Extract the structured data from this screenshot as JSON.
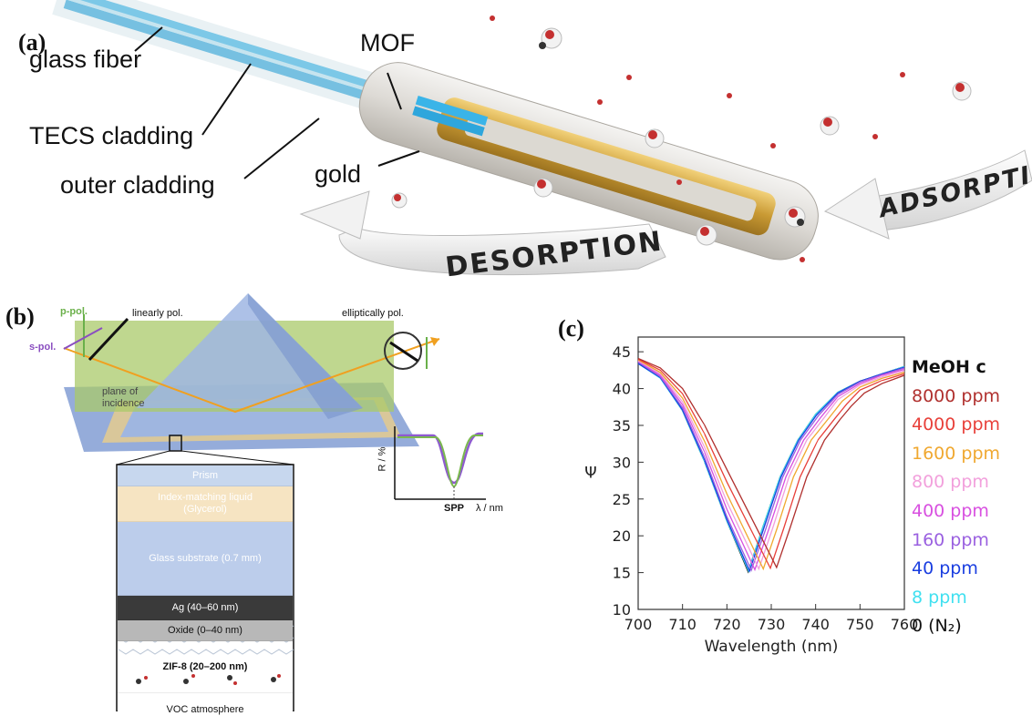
{
  "panel_a": {
    "label": "(a)",
    "glass_fiber": "glass fiber",
    "tecs_cladding": "TECS cladding",
    "outer_cladding": "outer cladding",
    "mof": "MOF",
    "gold": "gold",
    "desorption": "DESORPTION",
    "adsorption": "ADSORPTION"
  },
  "panel_b": {
    "label": "(b)",
    "p_pol": "p-pol.",
    "s_pol": "s-pol.",
    "linearly_pol": "linearly pol.",
    "elliptically_pol": "elliptically pol.",
    "plane_of": "plane of",
    "incidence": "incidence",
    "r_axis": "R / %",
    "spp": "SPP",
    "lambda_axis": "λ / nm",
    "layers": [
      {
        "text": "Prism",
        "color": "#c7d7ee",
        "text_color": "#ffffff"
      },
      {
        "text": "Index-matching liquid\n(Glycerol)",
        "color": "#f6e4c2",
        "text_color": "#ffffff"
      },
      {
        "text": "Glass substrate (0.7 mm)",
        "color": "#bccdeb",
        "text_color": "#ffffff"
      },
      {
        "text": "Ag (40–60 nm)",
        "color": "#3a3a3a",
        "text_color": "#ffffff"
      },
      {
        "text": "Oxide (0–40 nm)",
        "color": "#b8b8b8",
        "text_color": "#111111"
      },
      {
        "text": "ZIF-8 (20–200 nm)",
        "color": "#e4e8ee",
        "text_color": "#111111"
      },
      {
        "text": "VOC atmosphere",
        "color": "#ffffff",
        "text_color": "#111111"
      }
    ]
  },
  "panel_c": {
    "label": "(c)",
    "legend_title": "MeOH c",
    "legend": [
      {
        "text": "8000 ppm",
        "color": "#b0302e"
      },
      {
        "text": "4000 ppm",
        "color": "#e8403a"
      },
      {
        "text": "1600 ppm",
        "color": "#f0a830"
      },
      {
        "text": "800 ppm",
        "color": "#f2a0dc"
      },
      {
        "text": "400 ppm",
        "color": "#d850e0"
      },
      {
        "text": "160 ppm",
        "color": "#9a60e0"
      },
      {
        "text": "40 ppm",
        "color": "#1a3ee0"
      },
      {
        "text": "8 ppm",
        "color": "#40e0f0"
      },
      {
        "text": "0 (N₂)",
        "color": "#111111"
      }
    ]
  },
  "chart_data": {
    "type": "line",
    "title": "",
    "xlabel": "Wavelength (nm)",
    "ylabel": "Ψ",
    "xlim": [
      700,
      760
    ],
    "ylim": [
      10,
      47
    ],
    "xticks": [
      700,
      710,
      720,
      730,
      740,
      750,
      760
    ],
    "yticks": [
      10,
      15,
      20,
      25,
      30,
      35,
      40,
      45
    ],
    "grid": false,
    "legend_position": "right",
    "series": [
      {
        "name": "0 (N₂)",
        "color": "#111111",
        "min_x": 724.8,
        "points": [
          [
            700,
            43.5
          ],
          [
            705,
            41.5
          ],
          [
            710,
            37
          ],
          [
            715,
            30
          ],
          [
            720,
            22
          ],
          [
            724.8,
            15.1
          ],
          [
            728,
            21
          ],
          [
            732,
            28
          ],
          [
            736,
            33
          ],
          [
            740,
            36.5
          ],
          [
            745,
            39.5
          ],
          [
            750,
            41
          ],
          [
            755,
            42
          ],
          [
            760,
            43
          ]
        ]
      },
      {
        "name": "8 ppm",
        "color": "#40e0f0",
        "min_x": 724.9,
        "points": [
          [
            700,
            43.4
          ],
          [
            705,
            41.4
          ],
          [
            710,
            37
          ],
          [
            715,
            30
          ],
          [
            720,
            22
          ],
          [
            724.9,
            15.2
          ],
          [
            728,
            21
          ],
          [
            732,
            28
          ],
          [
            736,
            33
          ],
          [
            740,
            36.5
          ],
          [
            745,
            39.5
          ],
          [
            750,
            41
          ],
          [
            755,
            42
          ],
          [
            760,
            43
          ]
        ]
      },
      {
        "name": "40 ppm",
        "color": "#1a3ee0",
        "min_x": 725.1,
        "points": [
          [
            700,
            43.4
          ],
          [
            705,
            41.5
          ],
          [
            710,
            37.1
          ],
          [
            715,
            30.2
          ],
          [
            720,
            22.2
          ],
          [
            725.1,
            15.2
          ],
          [
            728.3,
            21
          ],
          [
            732.2,
            28
          ],
          [
            736.2,
            33
          ],
          [
            740.2,
            36.4
          ],
          [
            745,
            39.4
          ],
          [
            750,
            41
          ],
          [
            755,
            42
          ],
          [
            760,
            42.9
          ]
        ]
      },
      {
        "name": "160 ppm",
        "color": "#9a60e0",
        "min_x": 725.5,
        "points": [
          [
            700,
            43.6
          ],
          [
            705,
            41.6
          ],
          [
            710,
            37.4
          ],
          [
            715,
            30.6
          ],
          [
            720,
            22.6
          ],
          [
            725.5,
            15.3
          ],
          [
            728.8,
            21
          ],
          [
            732.6,
            28
          ],
          [
            736.6,
            33
          ],
          [
            740.6,
            36.3
          ],
          [
            745,
            39.2
          ],
          [
            750,
            40.9
          ],
          [
            755,
            41.9
          ],
          [
            760,
            42.8
          ]
        ]
      },
      {
        "name": "400 ppm",
        "color": "#d850e0",
        "min_x": 726.3,
        "points": [
          [
            700,
            43.7
          ],
          [
            705,
            41.8
          ],
          [
            710,
            37.8
          ],
          [
            715,
            31.3
          ],
          [
            720,
            23.6
          ],
          [
            726.3,
            15.4
          ],
          [
            729.5,
            21
          ],
          [
            733.3,
            28
          ],
          [
            737.3,
            33
          ],
          [
            741.3,
            36.2
          ],
          [
            745,
            38.9
          ],
          [
            750,
            40.7
          ],
          [
            755,
            41.8
          ],
          [
            760,
            42.6
          ]
        ]
      },
      {
        "name": "800 ppm",
        "color": "#f2a0dc",
        "min_x": 727.2,
        "points": [
          [
            700,
            43.8
          ],
          [
            705,
            42
          ],
          [
            710,
            38.2
          ],
          [
            715,
            32
          ],
          [
            720,
            24.6
          ],
          [
            727.2,
            15.5
          ],
          [
            730.3,
            21
          ],
          [
            734,
            28
          ],
          [
            738,
            33
          ],
          [
            742,
            36.1
          ],
          [
            745,
            38.5
          ],
          [
            750,
            40.5
          ],
          [
            755,
            41.6
          ],
          [
            760,
            42.4
          ]
        ]
      },
      {
        "name": "1600 ppm",
        "color": "#f0a830",
        "min_x": 728.2,
        "points": [
          [
            700,
            43.9
          ],
          [
            705,
            42.2
          ],
          [
            710,
            38.7
          ],
          [
            715,
            32.8
          ],
          [
            720,
            25.7
          ],
          [
            728.2,
            15.5
          ],
          [
            731.3,
            21
          ],
          [
            735,
            28
          ],
          [
            739,
            33
          ],
          [
            743,
            36
          ],
          [
            746,
            38.3
          ],
          [
            750,
            40.2
          ],
          [
            755,
            41.4
          ],
          [
            760,
            42.2
          ]
        ]
      },
      {
        "name": "4000 ppm",
        "color": "#e8403a",
        "min_x": 729.8,
        "points": [
          [
            700,
            44
          ],
          [
            705,
            42.5
          ],
          [
            710,
            39.3
          ],
          [
            715,
            33.8
          ],
          [
            720,
            27.3
          ],
          [
            729.8,
            15.6
          ],
          [
            732.8,
            21
          ],
          [
            736.5,
            28
          ],
          [
            740.5,
            33
          ],
          [
            744.3,
            35.9
          ],
          [
            747,
            37.9
          ],
          [
            750,
            39.8
          ],
          [
            755,
            41.1
          ],
          [
            760,
            42
          ]
        ]
      },
      {
        "name": "8000 ppm",
        "color": "#b0302e",
        "min_x": 731.2,
        "points": [
          [
            700,
            44.1
          ],
          [
            705,
            42.8
          ],
          [
            710,
            40
          ],
          [
            715,
            35
          ],
          [
            720,
            29
          ],
          [
            731.2,
            15.7
          ],
          [
            734.2,
            21
          ],
          [
            738,
            28
          ],
          [
            742,
            33
          ],
          [
            745.5,
            35.8
          ],
          [
            748,
            37.6
          ],
          [
            751,
            39.4
          ],
          [
            755,
            40.7
          ],
          [
            760,
            41.8
          ]
        ]
      }
    ]
  }
}
